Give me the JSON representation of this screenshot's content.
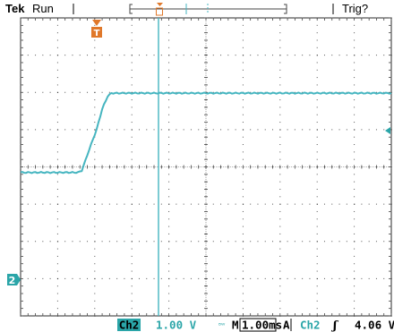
{
  "header": {
    "brand": "Tek",
    "state": "Run",
    "trigger_status": "Trig?"
  },
  "markers": {
    "trigger_position": "T",
    "channel_ground": "2"
  },
  "footer": {
    "channel": "Ch2",
    "volts_per_div": "1.00 V",
    "bw_limit_symbol": "ᴮᵂ",
    "timebase_label": "M",
    "time_per_div": "1.00ms",
    "trigger_mode": "A",
    "trigger_source": "Ch2",
    "trigger_slope_symbol": "ʃ",
    "trigger_level": "4.06 V"
  },
  "colors": {
    "trace": "#45b5c0",
    "marker_orange": "#e0782a",
    "channel_badge": "#2aa5a8",
    "grid": "#333333"
  },
  "chart_data": {
    "type": "line",
    "x_divisions": 10,
    "y_divisions": 8,
    "series": [
      {
        "values_div": [
          [
            0.0,
            -0.15
          ],
          [
            1.55,
            -0.15
          ],
          [
            1.65,
            -0.1
          ],
          [
            1.9,
            0.6
          ],
          [
            2.05,
            1.0
          ],
          [
            2.2,
            1.55
          ],
          [
            2.35,
            1.9
          ],
          [
            2.45,
            1.98
          ],
          [
            5.0,
            1.98
          ],
          [
            10.0,
            1.98
          ]
        ]
      }
    ]
  }
}
